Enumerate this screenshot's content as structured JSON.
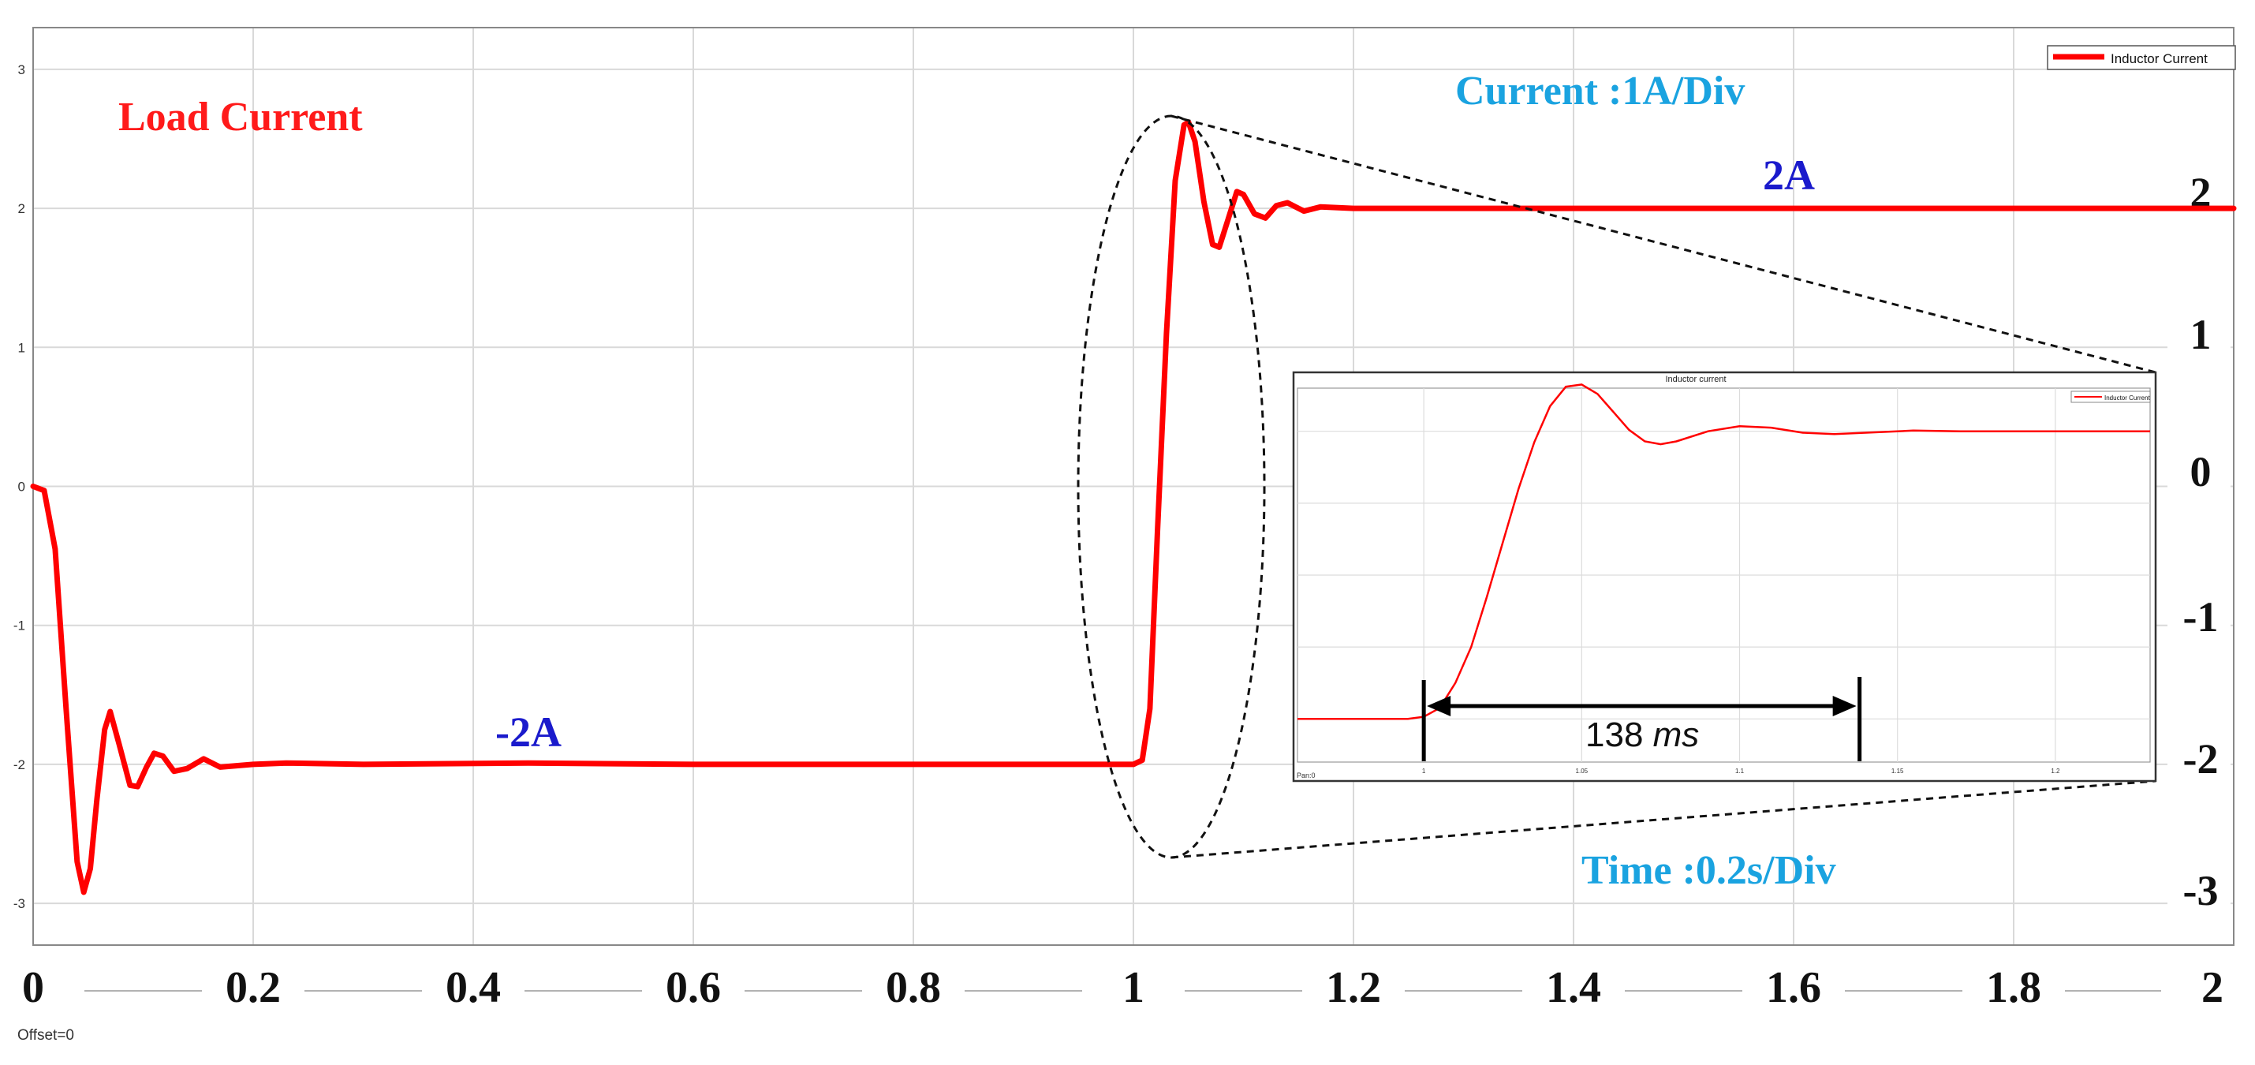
{
  "colors": {
    "trace": "#ff0000",
    "load_label": "#ff1a1a",
    "value_label": "#1a1acc",
    "scale_label": "#1aa3e0",
    "grid": "#d9d9d9",
    "axis": "#222222"
  },
  "chart_data": [
    {
      "type": "line",
      "legend": {
        "entry": "Inductor Current",
        "placement": "top-right"
      },
      "x": {
        "min": 0,
        "max": 2,
        "ticks": [
          0,
          0.2,
          0.4,
          0.6,
          0.8,
          1,
          1.2,
          1.4,
          1.6,
          1.8,
          2
        ],
        "tick_labels": [
          "0",
          "0.2",
          "0.4",
          "0.6",
          "0.8",
          "1",
          "1.2",
          "1.4",
          "1.6",
          "1.8",
          "2"
        ]
      },
      "y": {
        "min": -3.3,
        "max": 3.3,
        "ticks": [
          -3,
          -2,
          -1,
          0,
          1,
          2,
          3
        ],
        "left_tick_labels": [
          "-3",
          "-2",
          "-1",
          "0",
          "1",
          "2",
          "3"
        ],
        "right_tick_labels": [
          "-3",
          "-2",
          "-1",
          "0",
          "1",
          "2"
        ]
      },
      "grid": true,
      "series": [
        {
          "name": "Inductor Current",
          "points": [
            [
              0,
              0
            ],
            [
              0.01,
              -0.03
            ],
            [
              0.02,
              -0.45
            ],
            [
              0.03,
              -1.6
            ],
            [
              0.04,
              -2.7
            ],
            [
              0.046,
              -2.92
            ],
            [
              0.052,
              -2.75
            ],
            [
              0.058,
              -2.25
            ],
            [
              0.065,
              -1.75
            ],
            [
              0.07,
              -1.62
            ],
            [
              0.078,
              -1.85
            ],
            [
              0.088,
              -2.15
            ],
            [
              0.095,
              -2.16
            ],
            [
              0.103,
              -2.02
            ],
            [
              0.11,
              -1.92
            ],
            [
              0.118,
              -1.94
            ],
            [
              0.128,
              -2.05
            ],
            [
              0.14,
              -2.03
            ],
            [
              0.155,
              -1.96
            ],
            [
              0.17,
              -2.02
            ],
            [
              0.2,
              -2.0
            ],
            [
              0.23,
              -1.99
            ],
            [
              0.3,
              -2.0
            ],
            [
              0.45,
              -1.99
            ],
            [
              0.6,
              -2.0
            ],
            [
              0.8,
              -2.0
            ],
            [
              1.0,
              -2.0
            ],
            [
              1.008,
              -1.97
            ],
            [
              1.015,
              -1.6
            ],
            [
              1.022,
              -0.3
            ],
            [
              1.03,
              1.1
            ],
            [
              1.038,
              2.2
            ],
            [
              1.046,
              2.6
            ],
            [
              1.05,
              2.62
            ],
            [
              1.056,
              2.48
            ],
            [
              1.064,
              2.05
            ],
            [
              1.072,
              1.74
            ],
            [
              1.078,
              1.72
            ],
            [
              1.086,
              1.92
            ],
            [
              1.094,
              2.12
            ],
            [
              1.1,
              2.1
            ],
            [
              1.11,
              1.96
            ],
            [
              1.12,
              1.93
            ],
            [
              1.13,
              2.02
            ],
            [
              1.14,
              2.04
            ],
            [
              1.155,
              1.98
            ],
            [
              1.17,
              2.01
            ],
            [
              1.2,
              2.0
            ],
            [
              1.3,
              2.0
            ],
            [
              1.5,
              2.0
            ],
            [
              1.7,
              2.0
            ],
            [
              2.0,
              2.0
            ]
          ]
        }
      ],
      "annotations": {
        "load_current": "Load Current",
        "current_scale": "Current :1A/Div",
        "time_scale": "Time :0.2s/Div",
        "high_level": "2A",
        "low_level": "-2A",
        "offset": "Offset=0"
      }
    },
    {
      "type": "line",
      "title": "Inductor current",
      "legend": {
        "entry": "Inductor Current",
        "placement": "top-right"
      },
      "x": {
        "min": 0.96,
        "max": 1.23,
        "ticks": [
          1,
          1.05,
          1.1,
          1.15,
          1.2
        ],
        "tick_labels": [
          "1",
          "1.05",
          "1.1",
          "1.15",
          "1.2"
        ]
      },
      "y": {
        "min": -2.6,
        "max": 2.6,
        "ticks": [
          -2,
          -1,
          0,
          1,
          2
        ]
      },
      "grid": true,
      "series": [
        {
          "name": "Inductor Current",
          "points": [
            [
              0.96,
              -2
            ],
            [
              0.995,
              -2
            ],
            [
              1.0,
              -1.97
            ],
            [
              1.005,
              -1.85
            ],
            [
              1.01,
              -1.5
            ],
            [
              1.015,
              -1.0
            ],
            [
              1.02,
              -0.3
            ],
            [
              1.025,
              0.45
            ],
            [
              1.03,
              1.2
            ],
            [
              1.035,
              1.85
            ],
            [
              1.04,
              2.35
            ],
            [
              1.045,
              2.62
            ],
            [
              1.05,
              2.65
            ],
            [
              1.055,
              2.52
            ],
            [
              1.06,
              2.27
            ],
            [
              1.065,
              2.02
            ],
            [
              1.07,
              1.86
            ],
            [
              1.075,
              1.82
            ],
            [
              1.08,
              1.86
            ],
            [
              1.09,
              2.0
            ],
            [
              1.1,
              2.07
            ],
            [
              1.11,
              2.05
            ],
            [
              1.12,
              1.98
            ],
            [
              1.13,
              1.96
            ],
            [
              1.14,
              1.98
            ],
            [
              1.155,
              2.01
            ],
            [
              1.17,
              2.0
            ],
            [
              1.2,
              2.0
            ],
            [
              1.23,
              2.0
            ]
          ]
        }
      ],
      "annotations": {
        "settling_time": "138 ",
        "settling_unit": "ms",
        "marker_start_x": 1.0,
        "marker_end_x": 1.138,
        "corner_label": "Pan:0"
      }
    }
  ]
}
